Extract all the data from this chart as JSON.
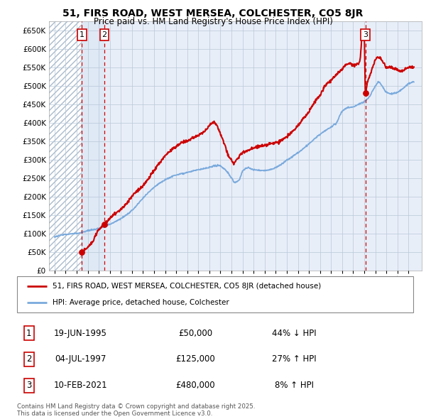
{
  "title_line1": "51, FIRS ROAD, WEST MERSEA, COLCHESTER, CO5 8JR",
  "title_line2": "Price paid vs. HM Land Registry's House Price Index (HPI)",
  "background_color": "#e8eef8",
  "hatch_region_color": "#ffffff",
  "grid_color": "#b8c8d8",
  "sale_color": "#cc0000",
  "hpi_color": "#7aaadd",
  "sales": [
    {
      "date_num": 1995.47,
      "price": 50000,
      "label": "1"
    },
    {
      "date_num": 1997.51,
      "price": 125000,
      "label": "2"
    },
    {
      "date_num": 2021.11,
      "price": 480000,
      "label": "3"
    }
  ],
  "legend_entries": [
    "51, FIRS ROAD, WEST MERSEA, COLCHESTER, CO5 8JR (detached house)",
    "HPI: Average price, detached house, Colchester"
  ],
  "table_rows": [
    {
      "num": "1",
      "date": "19-JUN-1995",
      "price": "£50,000",
      "hpi": "44% ↓ HPI"
    },
    {
      "num": "2",
      "date": "04-JUL-1997",
      "price": "£125,000",
      "hpi": "27% ↑ HPI"
    },
    {
      "num": "3",
      "date": "10-FEB-2021",
      "price": "£480,000",
      "hpi": "8% ↑ HPI"
    }
  ],
  "footer": "Contains HM Land Registry data © Crown copyright and database right 2025.\nThis data is licensed under the Open Government Licence v3.0.",
  "ylim": [
    0,
    675000
  ],
  "yticks": [
    0,
    50000,
    100000,
    150000,
    200000,
    250000,
    300000,
    350000,
    400000,
    450000,
    500000,
    550000,
    600000,
    650000
  ],
  "xlim_start": 1992.5,
  "xlim_end": 2026.2,
  "xticks": [
    1993,
    1994,
    1995,
    1996,
    1997,
    1998,
    1999,
    2000,
    2001,
    2002,
    2003,
    2004,
    2005,
    2006,
    2007,
    2008,
    2009,
    2010,
    2011,
    2012,
    2013,
    2014,
    2015,
    2016,
    2017,
    2018,
    2019,
    2020,
    2021,
    2022,
    2023,
    2024,
    2025
  ]
}
